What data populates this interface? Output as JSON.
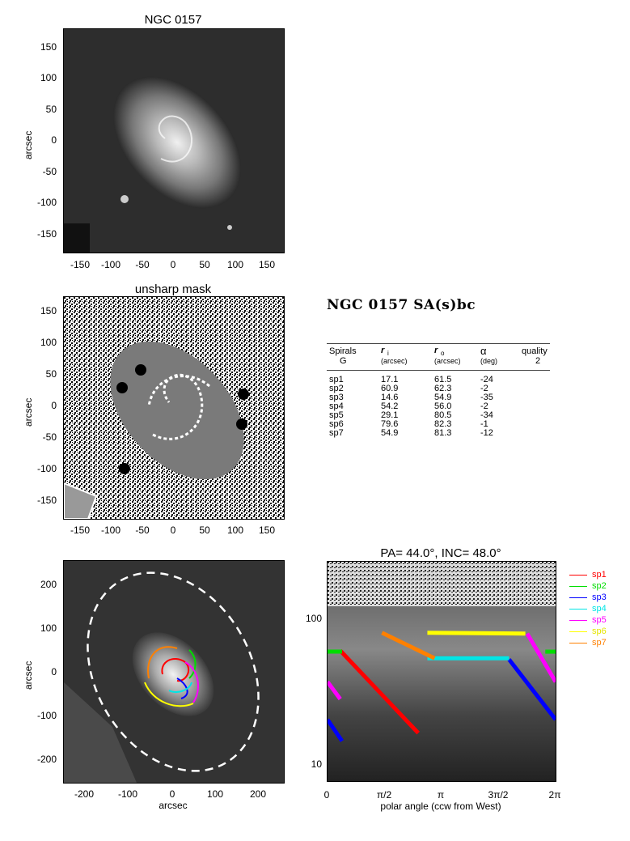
{
  "panel1": {
    "title": "NGC 0157",
    "ylabel": "arcsec",
    "xticks": [
      "-150",
      "-100",
      "-50",
      "0",
      "50",
      "100",
      "150"
    ],
    "yticks": [
      "150",
      "100",
      "50",
      "0",
      "-50",
      "-100",
      "-150"
    ]
  },
  "panel2": {
    "title": "unsharp mask",
    "ylabel": "arcsec",
    "xticks": [
      "-150",
      "-100",
      "-50",
      "0",
      "50",
      "100",
      "150"
    ],
    "yticks": [
      "150",
      "100",
      "50",
      "0",
      "-50",
      "-100",
      "-150"
    ]
  },
  "panel3": {
    "xlabel": "arcsec",
    "ylabel": "arcsec",
    "xticks": [
      "-200",
      "-100",
      "0",
      "100",
      "200"
    ],
    "yticks": [
      "200",
      "100",
      "0",
      "-100",
      "-200"
    ]
  },
  "table": {
    "title": "NGC 0157  SA(s)bc",
    "headers": {
      "spirals": "Spirals",
      "spirals_sub": "G",
      "ri": "r",
      "ri_sub": "i",
      "ri_unit": "(arcsec)",
      "ro": "r",
      "ro_sub": "o",
      "ro_unit": "(arcsec)",
      "alpha": "α",
      "alpha_unit": "(deg)",
      "quality": "quality",
      "quality_val": "2"
    },
    "rows": [
      {
        "name": "sp1",
        "ri": "17.1",
        "ro": "61.5",
        "alpha": "-24"
      },
      {
        "name": "sp2",
        "ri": "60.9",
        "ro": "62.3",
        "alpha": "-2"
      },
      {
        "name": "sp3",
        "ri": "14.6",
        "ro": "54.9",
        "alpha": "-35"
      },
      {
        "name": "sp4",
        "ri": "54.2",
        "ro": "56.0",
        "alpha": "-2"
      },
      {
        "name": "sp5",
        "ri": "29.1",
        "ro": "80.5",
        "alpha": "-34"
      },
      {
        "name": "sp6",
        "ri": "79.6",
        "ro": "82.3",
        "alpha": "-1"
      },
      {
        "name": "sp7",
        "ri": "54.9",
        "ro": "81.3",
        "alpha": "-12"
      }
    ]
  },
  "chart_data": {
    "type": "line",
    "title": "PA=  44.0°, INC=  48.0°",
    "xlabel": "polar angle (ccw from West)",
    "ylabel": "",
    "xticks": [
      "0",
      "π/2",
      "π",
      "3π/2",
      "2π"
    ],
    "yticks": [
      "100",
      "10"
    ],
    "xlim": [
      0,
      6.283
    ],
    "ylim": [
      8,
      250
    ],
    "yscale": "log",
    "series": [
      {
        "name": "sp1",
        "color": "#ff0000",
        "segments": [
          [
            [
              0.35,
              62
            ],
            [
              2.5,
              17
            ]
          ]
        ]
      },
      {
        "name": "sp2",
        "color": "#00dd00",
        "segments": [
          [
            [
              0.0,
              61
            ],
            [
              0.4,
              61
            ]
          ],
          [
            [
              6.0,
              61
            ],
            [
              6.283,
              61
            ]
          ]
        ]
      },
      {
        "name": "sp3",
        "color": "#0000ff",
        "segments": [
          [
            [
              0.0,
              21
            ],
            [
              0.4,
              15
            ]
          ],
          [
            [
              5.0,
              54
            ],
            [
              6.283,
              21
            ]
          ]
        ]
      },
      {
        "name": "sp4",
        "color": "#00e5e5",
        "segments": [
          [
            [
              2.75,
              55
            ],
            [
              5.0,
              55
            ]
          ]
        ]
      },
      {
        "name": "sp5",
        "color": "#ff00ff",
        "segments": [
          [
            [
              0.0,
              38
            ],
            [
              0.35,
              29
            ]
          ],
          [
            [
              5.5,
              81
            ],
            [
              6.283,
              38
            ]
          ]
        ]
      },
      {
        "name": "sp6",
        "color": "#ffff00",
        "segments": [
          [
            [
              2.75,
              82
            ],
            [
              5.45,
              81
            ]
          ]
        ]
      },
      {
        "name": "sp7",
        "color": "#ff8000",
        "segments": [
          [
            [
              1.5,
              82
            ],
            [
              2.95,
              55
            ]
          ]
        ]
      }
    ]
  }
}
